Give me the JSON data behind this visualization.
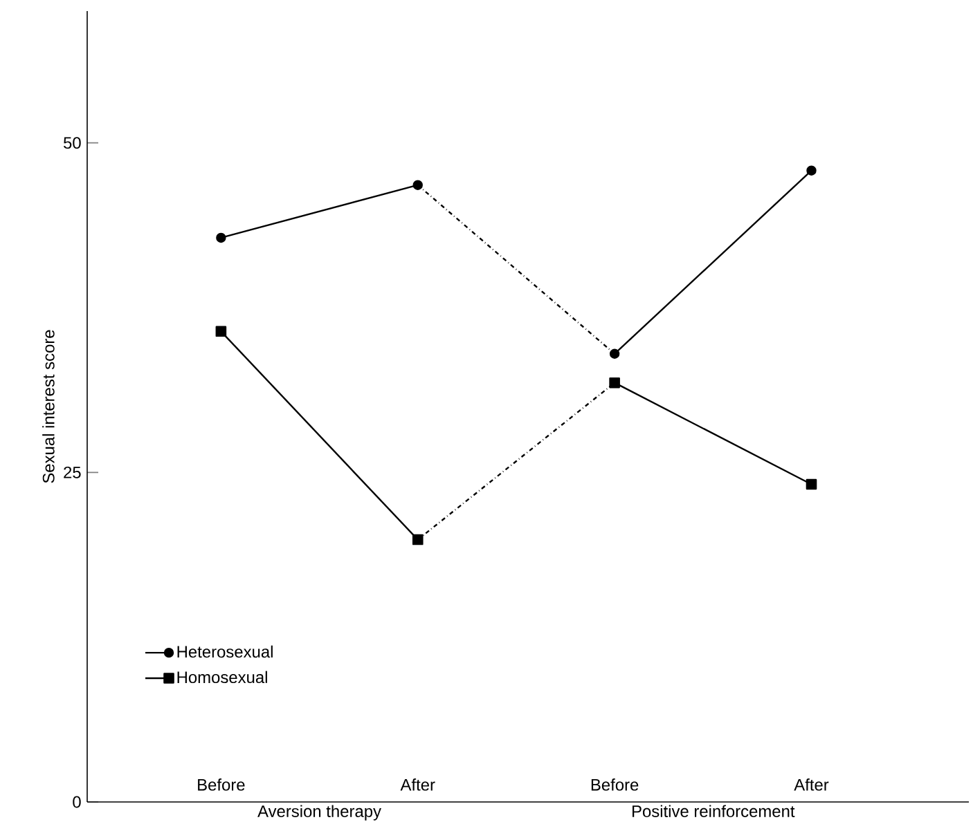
{
  "chart_data": {
    "type": "line",
    "ylabel": "Sexual interest score",
    "categories": [
      "Before",
      "After",
      "Before",
      "After"
    ],
    "ylim": [
      0,
      60
    ],
    "yticks": [
      0,
      25,
      50
    ],
    "legend": "bottom left",
    "grid": false,
    "annotations": [
      "Aversion therapy",
      "Positive reinforcement"
    ],
    "series": [
      {
        "name": "Heterosexual",
        "color": "#000000",
        "marker": "circle",
        "line_style": "solid",
        "values": [
          42.8,
          46.8,
          null,
          null
        ]
      },
      {
        "color": "#000000",
        "line_style": "dashed",
        "values": [
          null,
          46.8,
          34.0,
          null
        ]
      },
      {
        "color": "#000000",
        "marker": "circle",
        "line_style": "solid",
        "values": [
          null,
          null,
          34.0,
          47.9
        ]
      },
      {
        "name": "Homosexual",
        "color": "#000000",
        "marker": "square",
        "line_style": "solid",
        "values": [
          35.7,
          19.9,
          null,
          null
        ]
      },
      {
        "color": "#000000",
        "line_style": "dashed",
        "values": [
          null,
          19.9,
          31.8,
          null
        ]
      },
      {
        "color": "#000000",
        "marker": "square",
        "line_style": "solid",
        "values": [
          null,
          null,
          31.8,
          24.1
        ]
      }
    ]
  }
}
